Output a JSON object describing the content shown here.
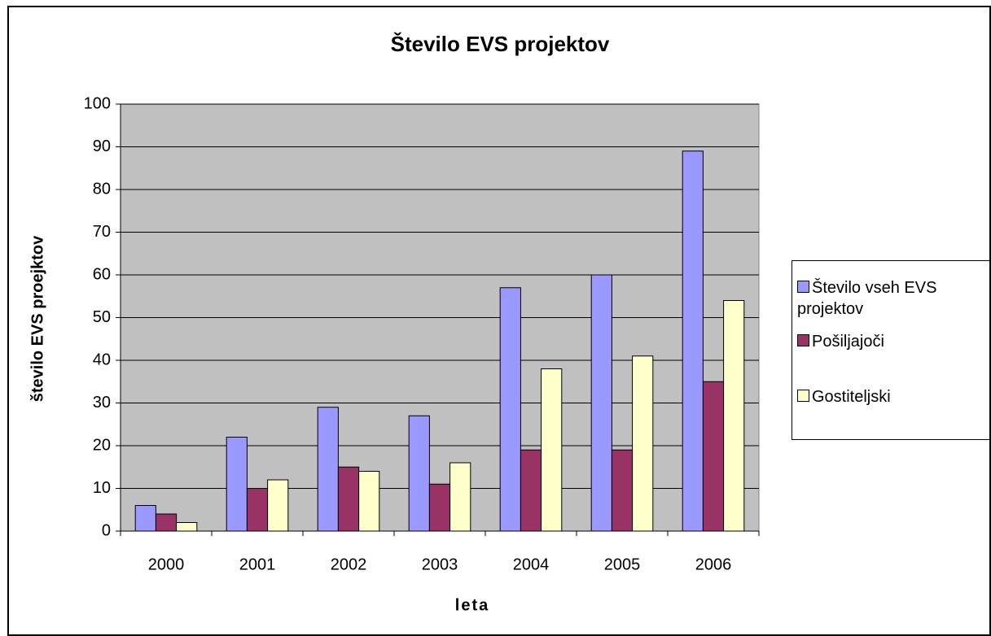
{
  "chart_data": {
    "type": "bar",
    "title": "Število EVS projektov",
    "x_label": "leta",
    "y_label": "število EVS proejktov",
    "categories": [
      "2000",
      "2001",
      "2002",
      "2003",
      "2004",
      "2005",
      "2006"
    ],
    "series": [
      {
        "name": "Število vseh EVS projektov",
        "color": "#9999ff",
        "values": [
          6,
          22,
          29,
          27,
          57,
          60,
          89
        ]
      },
      {
        "name": "Pošiljajoči",
        "color": "#993366",
        "values": [
          4,
          10,
          15,
          11,
          19,
          19,
          35
        ]
      },
      {
        "name": "Gostiteljski",
        "color": "#ffffcc",
        "values": [
          2,
          12,
          14,
          16,
          38,
          41,
          54
        ]
      }
    ],
    "ylim": [
      0,
      100
    ],
    "yticks": [
      0,
      10,
      20,
      30,
      40,
      50,
      60,
      70,
      80,
      90,
      100
    ],
    "grid": true,
    "legend": "right"
  }
}
